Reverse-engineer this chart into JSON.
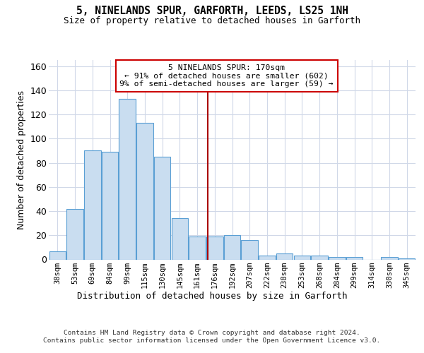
{
  "title": "5, NINELANDS SPUR, GARFORTH, LEEDS, LS25 1NH",
  "subtitle": "Size of property relative to detached houses in Garforth",
  "xlabel": "Distribution of detached houses by size in Garforth",
  "ylabel": "Number of detached properties",
  "categories": [
    "38sqm",
    "53sqm",
    "69sqm",
    "84sqm",
    "99sqm",
    "115sqm",
    "130sqm",
    "145sqm",
    "161sqm",
    "176sqm",
    "192sqm",
    "207sqm",
    "222sqm",
    "238sqm",
    "253sqm",
    "268sqm",
    "284sqm",
    "299sqm",
    "314sqm",
    "330sqm",
    "345sqm"
  ],
  "values": [
    7,
    42,
    90,
    89,
    133,
    113,
    85,
    34,
    19,
    19,
    20,
    16,
    3,
    5,
    3,
    3,
    2,
    2,
    0,
    2,
    1
  ],
  "bar_color": "#c9ddf0",
  "bar_edge_color": "#5a9fd4",
  "vline_x": 8.6,
  "vline_color": "#aa0000",
  "annotation_text": "5 NINELANDS SPUR: 170sqm\n← 91% of detached houses are smaller (602)\n9% of semi-detached houses are larger (59) →",
  "annotation_box_color": "#cc0000",
  "ylim": [
    0,
    165
  ],
  "yticks": [
    0,
    20,
    40,
    60,
    80,
    100,
    120,
    140,
    160
  ],
  "footer": "Contains HM Land Registry data © Crown copyright and database right 2024.\nContains public sector information licensed under the Open Government Licence v3.0.",
  "background_color": "#ffffff",
  "grid_color": "#d0d8e8"
}
